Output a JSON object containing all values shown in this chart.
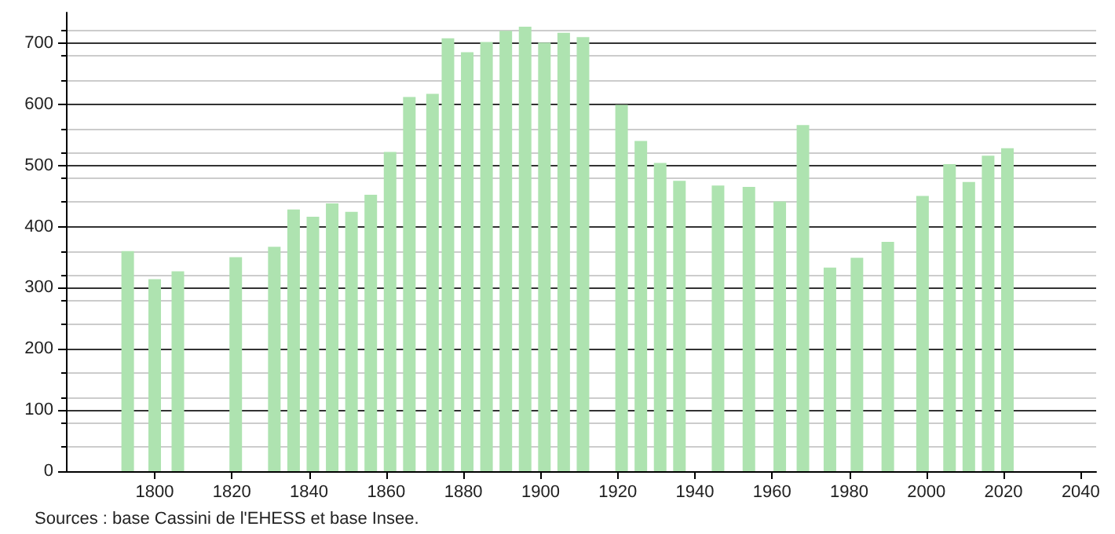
{
  "chart_data": {
    "type": "bar",
    "x": [
      1793,
      1800,
      1806,
      1821,
      1831,
      1836,
      1841,
      1846,
      1851,
      1856,
      1861,
      1866,
      1872,
      1876,
      1881,
      1886,
      1891,
      1896,
      1901,
      1906,
      1911,
      1921,
      1926,
      1931,
      1936,
      1946,
      1954,
      1962,
      1968,
      1975,
      1982,
      1990,
      1999,
      2006,
      2011,
      2016,
      2021
    ],
    "values": [
      360,
      314,
      327,
      350,
      367,
      428,
      416,
      438,
      424,
      452,
      522,
      612,
      617,
      708,
      685,
      702,
      720,
      727,
      701,
      717,
      710,
      599,
      540,
      504,
      475,
      467,
      465,
      441,
      566,
      333,
      349,
      375,
      450,
      502,
      473,
      516,
      528
    ],
    "color": "#aee3b0",
    "xlim": [
      1777,
      2044
    ],
    "xticks": [
      1800,
      1820,
      1840,
      1860,
      1880,
      1900,
      1920,
      1940,
      1960,
      1980,
      2000,
      2020,
      2040
    ],
    "ylim": [
      0,
      750
    ],
    "yticks": [
      0,
      100,
      200,
      300,
      400,
      500,
      600,
      700
    ],
    "grid": "y",
    "annotations": [
      "Sources : base Cassini de l'EHESS et base Insee."
    ]
  }
}
